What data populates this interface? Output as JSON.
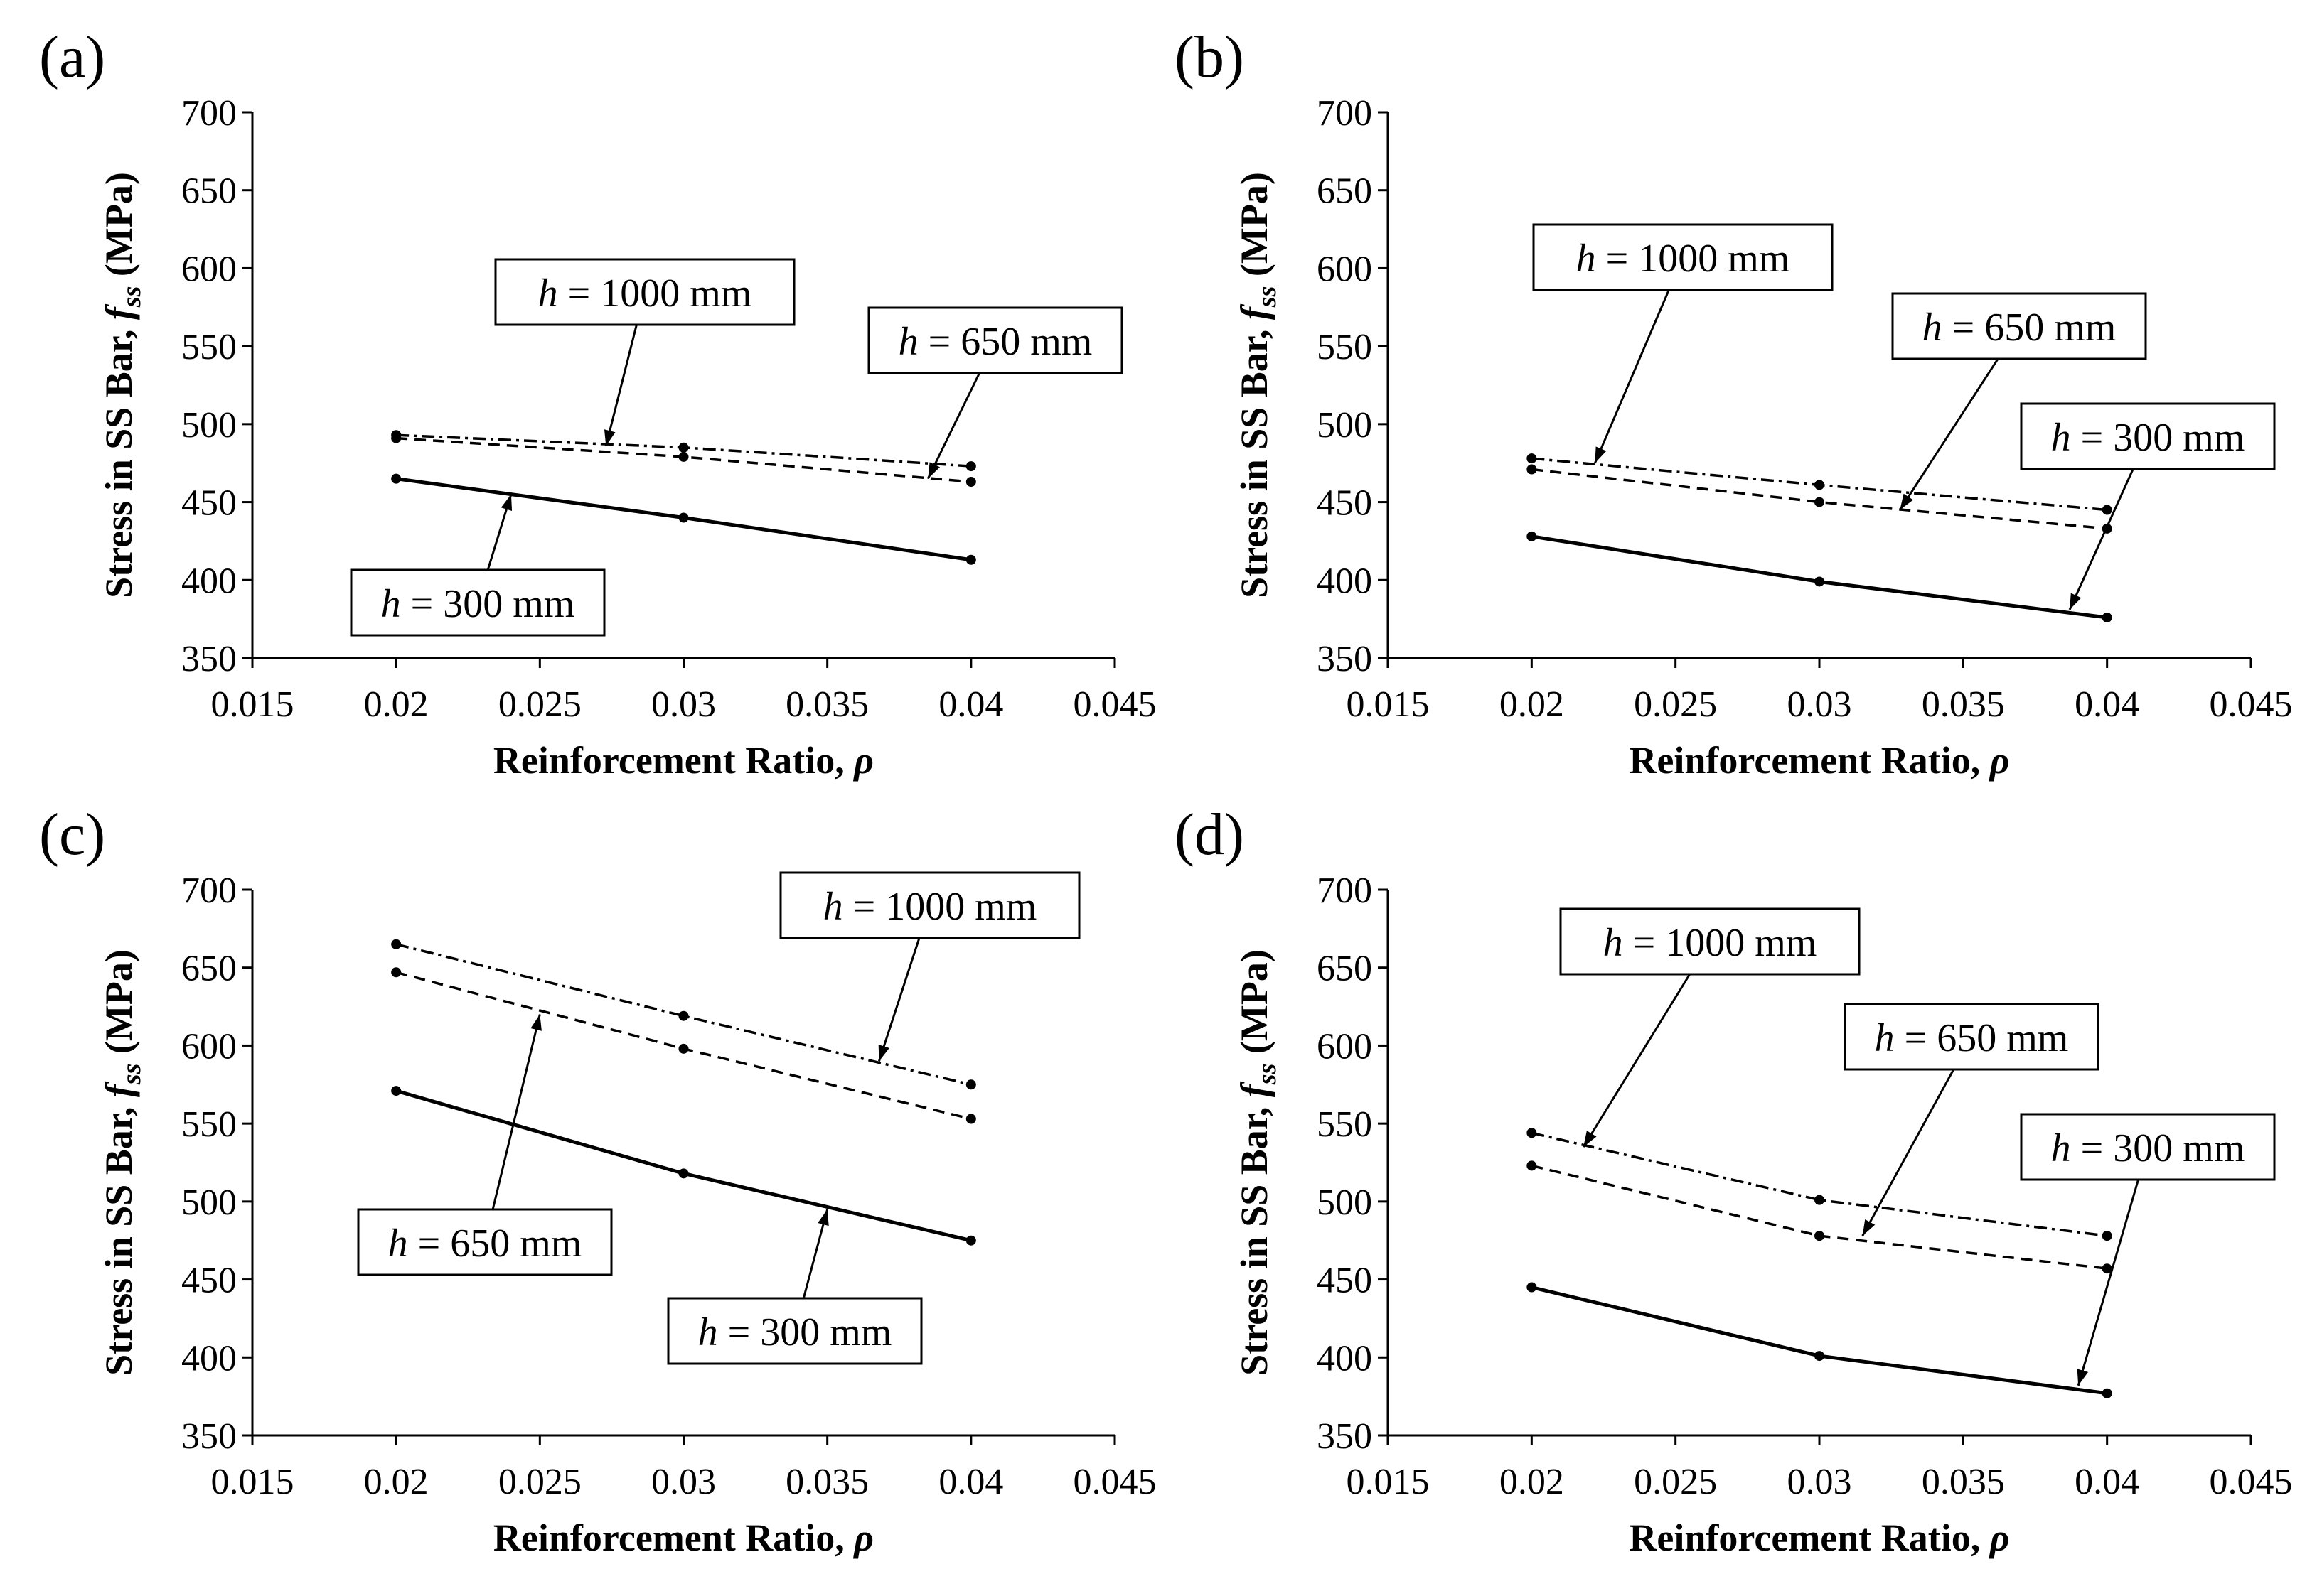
{
  "chart_data": [
    {
      "panel": "(a)",
      "type": "line",
      "xlabel": "Reinforcement Ratio, ρ",
      "ylabel_main": "Stress in SS Bar, ",
      "ylabel_var": "f",
      "ylabel_sub": "ss",
      "ylabel_unit": " (MPa)",
      "xlim": [
        0.015,
        0.045
      ],
      "ylim": [
        350,
        700
      ],
      "x_ticks": [
        "0.015",
        "0.02",
        "0.025",
        "0.03",
        "0.035",
        "0.04",
        "0.045"
      ],
      "y_ticks": [
        "350",
        "400",
        "450",
        "500",
        "550",
        "600",
        "650",
        "700"
      ],
      "x": [
        0.02,
        0.03,
        0.04
      ],
      "series": [
        {
          "name": "h = 300 mm",
          "style": "solid",
          "values": [
            465,
            440,
            413
          ]
        },
        {
          "name": "h = 650 mm",
          "style": "dashed",
          "values": [
            491,
            479,
            463
          ]
        },
        {
          "name": "h = 1000 mm",
          "style": "dashdot",
          "values": [
            493,
            485,
            473
          ]
        }
      ],
      "annotations": [
        {
          "var": "h",
          "text": " = 1000 mm",
          "series": "h = 1000 mm"
        },
        {
          "var": "h",
          "text": " = 650 mm",
          "series": "h = 650 mm"
        },
        {
          "var": "h",
          "text": " = 300 mm",
          "series": "h = 300 mm"
        }
      ]
    },
    {
      "panel": "(b)",
      "type": "line",
      "xlabel": "Reinforcement Ratio, ρ",
      "ylabel_main": "Stress in SS Bar, ",
      "ylabel_var": "f",
      "ylabel_sub": "ss",
      "ylabel_unit": " (MPa)",
      "xlim": [
        0.015,
        0.045
      ],
      "ylim": [
        350,
        700
      ],
      "x_ticks": [
        "0.015",
        "0.02",
        "0.025",
        "0.03",
        "0.035",
        "0.04",
        "0.045"
      ],
      "y_ticks": [
        "350",
        "400",
        "450",
        "500",
        "550",
        "600",
        "650",
        "700"
      ],
      "x": [
        0.02,
        0.03,
        0.04
      ],
      "series": [
        {
          "name": "h = 300 mm",
          "style": "solid",
          "values": [
            428,
            399,
            376
          ]
        },
        {
          "name": "h = 650 mm",
          "style": "dashed",
          "values": [
            471,
            450,
            433
          ]
        },
        {
          "name": "h = 1000 mm",
          "style": "dashdot",
          "values": [
            478,
            461,
            445
          ]
        }
      ],
      "annotations": [
        {
          "var": "h",
          "text": " = 1000 mm",
          "series": "h = 1000 mm"
        },
        {
          "var": "h",
          "text": " = 650 mm",
          "series": "h = 650 mm"
        },
        {
          "var": "h",
          "text": " = 300 mm",
          "series": "h = 300 mm"
        }
      ]
    },
    {
      "panel": "(c)",
      "type": "line",
      "xlabel": "Reinforcement Ratio, ρ",
      "ylabel_main": "Stress in SS Bar, ",
      "ylabel_var": "f",
      "ylabel_sub": "ss",
      "ylabel_unit": " (MPa)",
      "xlim": [
        0.015,
        0.045
      ],
      "ylim": [
        350,
        700
      ],
      "x_ticks": [
        "0.015",
        "0.02",
        "0.025",
        "0.03",
        "0.035",
        "0.04",
        "0.045"
      ],
      "y_ticks": [
        "350",
        "400",
        "450",
        "500",
        "550",
        "600",
        "650",
        "700"
      ],
      "x": [
        0.02,
        0.03,
        0.04
      ],
      "series": [
        {
          "name": "h = 300 mm",
          "style": "solid",
          "values": [
            571,
            518,
            475
          ]
        },
        {
          "name": "h = 650 mm",
          "style": "dashed",
          "values": [
            647,
            598,
            553
          ]
        },
        {
          "name": "h = 1000 mm",
          "style": "dashdot",
          "values": [
            665,
            619,
            575
          ]
        }
      ],
      "annotations": [
        {
          "var": "h",
          "text": " = 1000 mm",
          "series": "h = 1000 mm"
        },
        {
          "var": "h",
          "text": " = 650 mm",
          "series": "h = 650 mm"
        },
        {
          "var": "h",
          "text": " = 300 mm",
          "series": "h = 300 mm"
        }
      ]
    },
    {
      "panel": "(d)",
      "type": "line",
      "xlabel": "Reinforcement Ratio, ρ",
      "ylabel_main": "Stress in SS Bar, ",
      "ylabel_var": "f",
      "ylabel_sub": "ss",
      "ylabel_unit": " (MPa)",
      "xlim": [
        0.015,
        0.045
      ],
      "ylim": [
        350,
        700
      ],
      "x_ticks": [
        "0.015",
        "0.02",
        "0.025",
        "0.03",
        "0.035",
        "0.04",
        "0.045"
      ],
      "y_ticks": [
        "350",
        "400",
        "450",
        "500",
        "550",
        "600",
        "650",
        "700"
      ],
      "x": [
        0.02,
        0.03,
        0.04
      ],
      "series": [
        {
          "name": "h = 300 mm",
          "style": "solid",
          "values": [
            445,
            401,
            377
          ]
        },
        {
          "name": "h = 650 mm",
          "style": "dashed",
          "values": [
            523,
            478,
            457
          ]
        },
        {
          "name": "h = 1000 mm",
          "style": "dashdot",
          "values": [
            544,
            501,
            478
          ]
        }
      ],
      "annotations": [
        {
          "var": "h",
          "text": " = 1000 mm",
          "series": "h = 1000 mm"
        },
        {
          "var": "h",
          "text": " = 650 mm",
          "series": "h = 650 mm"
        },
        {
          "var": "h",
          "text": " = 300 mm",
          "series": "h = 300 mm"
        }
      ]
    }
  ]
}
